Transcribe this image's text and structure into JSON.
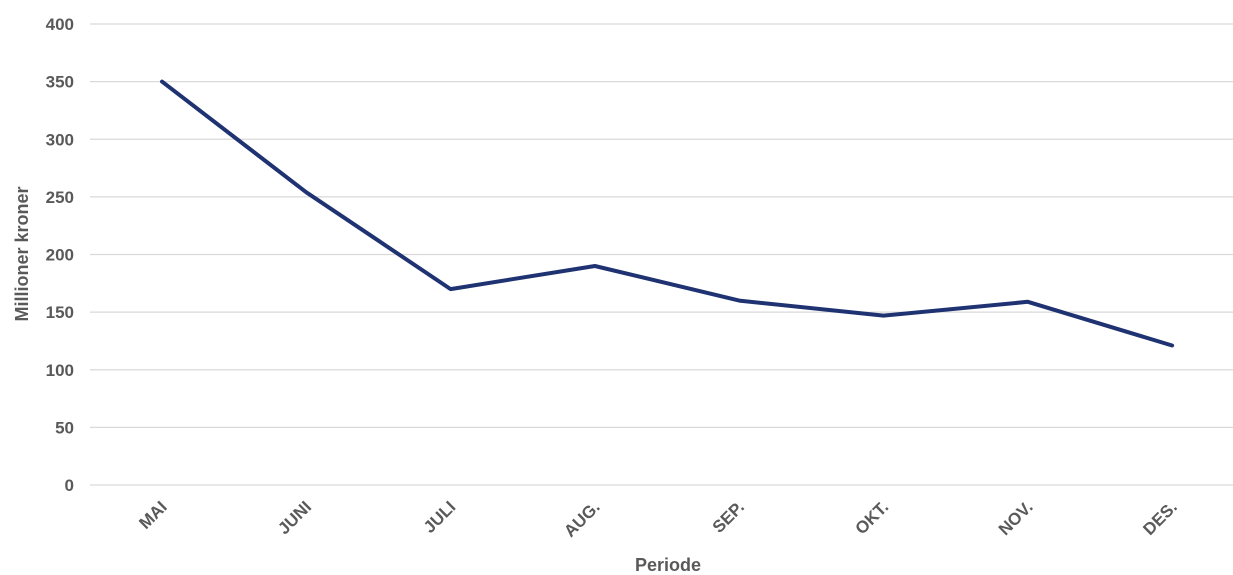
{
  "chart_data": {
    "type": "line",
    "title": "",
    "xlabel": "Periode",
    "ylabel": "Millioner kroner",
    "categories": [
      "MAI",
      "JUNI",
      "JULI",
      "AUG.",
      "SEP.",
      "OKT.",
      "NOV.",
      "DES."
    ],
    "series": [
      {
        "values": [
          350,
          254,
          170,
          190,
          160,
          147,
          159,
          121
        ],
        "color": "#1f3272"
      }
    ],
    "ylim": [
      0,
      400
    ],
    "yticks": [
      0,
      50,
      100,
      150,
      200,
      250,
      300,
      350,
      400
    ],
    "grid": true,
    "legend": "none"
  }
}
